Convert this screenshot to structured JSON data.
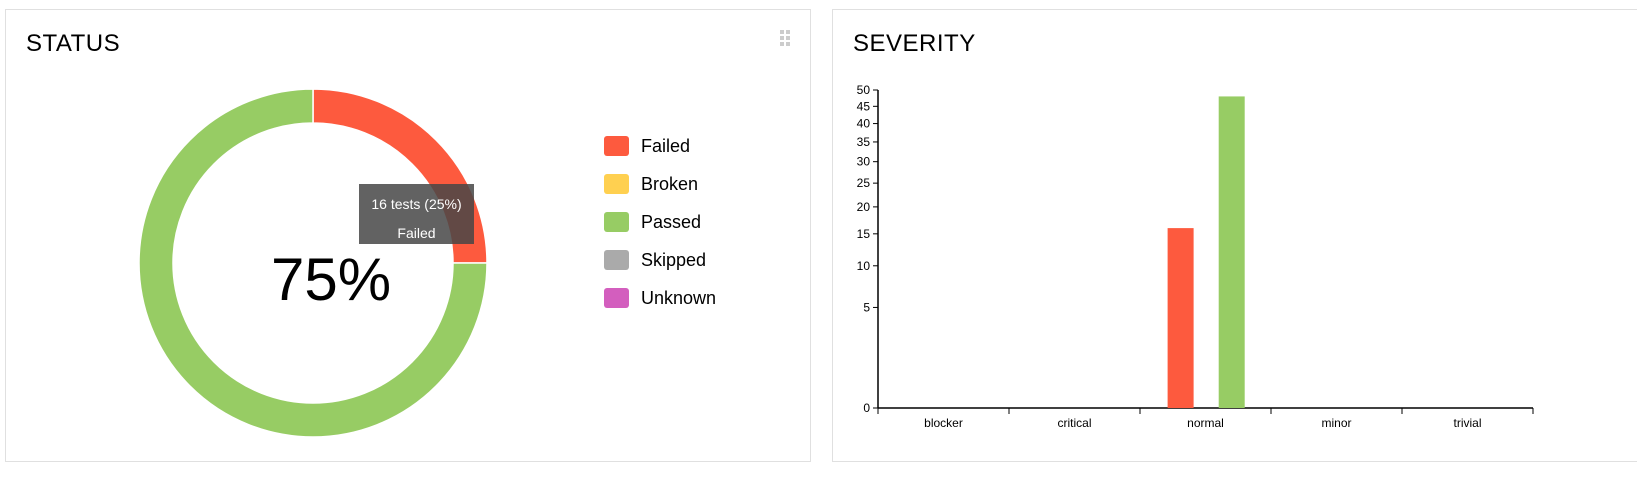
{
  "status_widget": {
    "title": "STATUS",
    "center_label": "75%",
    "tooltip": {
      "line1": "16 tests (25%)",
      "line2": "Failed"
    },
    "legend": [
      {
        "label": "Failed",
        "color": "#fd5a3e"
      },
      {
        "label": "Broken",
        "color": "#ffd050"
      },
      {
        "label": "Passed",
        "color": "#97cc64"
      },
      {
        "label": "Skipped",
        "color": "#aaaaaa"
      },
      {
        "label": "Unknown",
        "color": "#d35ebe"
      }
    ]
  },
  "severity_widget": {
    "title": "SEVERITY"
  },
  "chart_data": [
    {
      "type": "pie",
      "title": "STATUS",
      "donut": true,
      "categories": [
        "Failed",
        "Passed"
      ],
      "values": [
        16,
        48
      ],
      "colors": [
        "#fd5a3e",
        "#97cc64"
      ]
    },
    {
      "type": "bar",
      "title": "SEVERITY",
      "categories": [
        "blocker",
        "critical",
        "normal",
        "minor",
        "trivial"
      ],
      "series": [
        {
          "name": "Failed",
          "color": "#fd5a3e",
          "values": [
            0,
            0,
            16,
            0,
            0
          ]
        },
        {
          "name": "Passed",
          "color": "#97cc64",
          "values": [
            0,
            0,
            48,
            0,
            0
          ]
        }
      ],
      "y_scale": "sqrt",
      "yticks": [
        0,
        5,
        10,
        15,
        20,
        25,
        30,
        35,
        40,
        45,
        50
      ],
      "ylim": [
        0,
        50
      ]
    }
  ]
}
